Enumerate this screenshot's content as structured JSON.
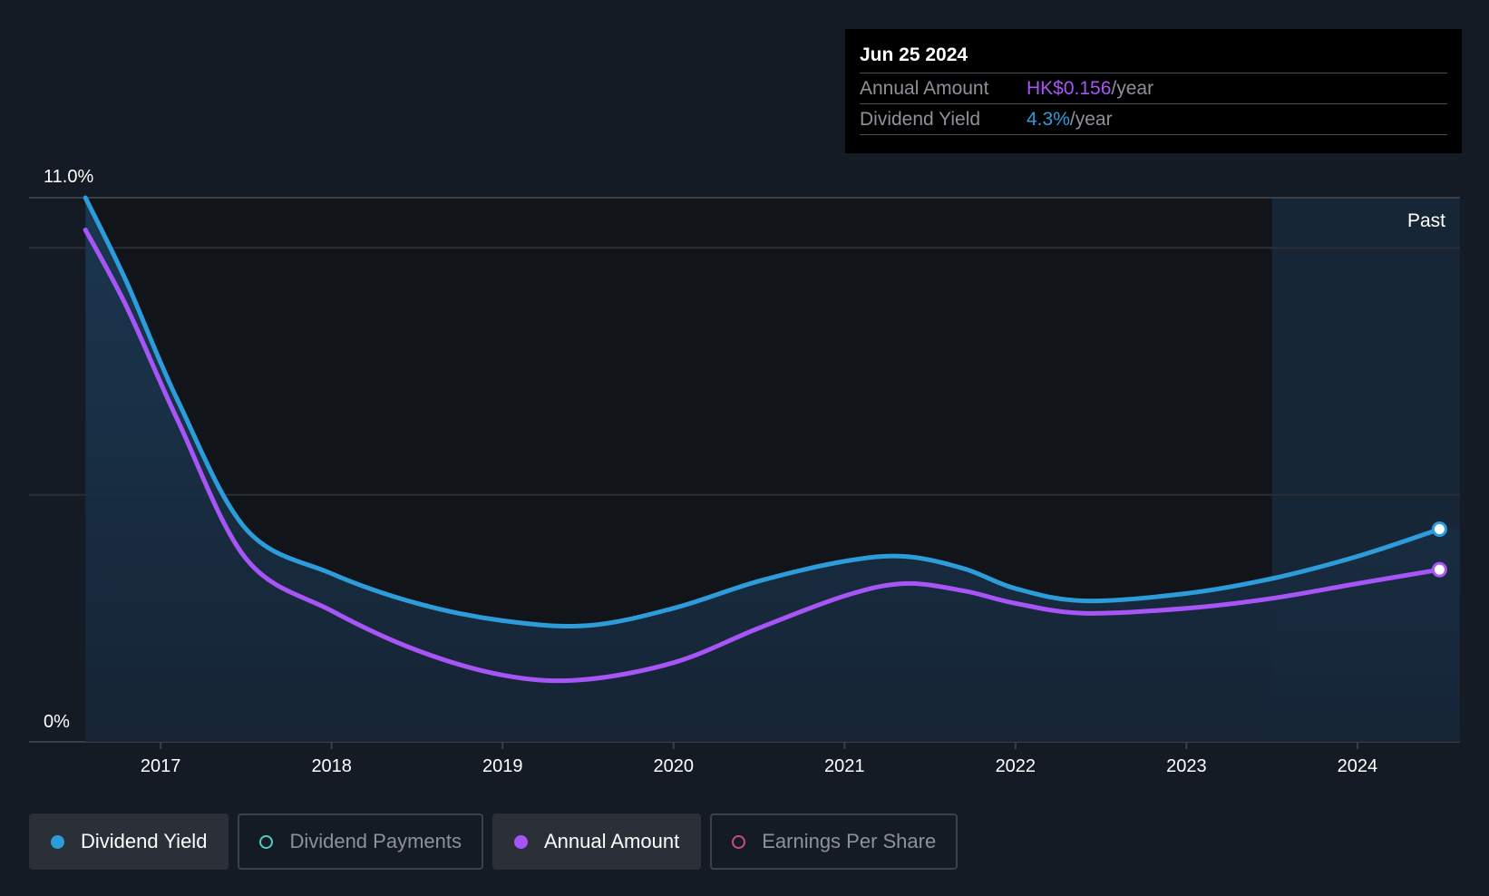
{
  "tooltip": {
    "date": "Jun 25 2024",
    "rows": [
      {
        "label": "Annual Amount",
        "value": "HK$0.156",
        "unit": "/year"
      },
      {
        "label": "Dividend Yield",
        "value": "4.3%",
        "unit": "/year"
      }
    ]
  },
  "legend": [
    {
      "label": "Dividend Yield",
      "active": true,
      "color": "#2d9cdb",
      "marker": "filled"
    },
    {
      "label": "Dividend Payments",
      "active": false,
      "color": "#4ecdc4",
      "marker": "hollow"
    },
    {
      "label": "Annual Amount",
      "active": true,
      "color": "#a855f7",
      "marker": "filled"
    },
    {
      "label": "Earnings Per Share",
      "active": false,
      "color": "#c44d8a",
      "marker": "hollow"
    }
  ],
  "colors": {
    "background": "#151b24",
    "yield": "#2d9cdb",
    "amount": "#a855f7",
    "past_region": "#182a3e"
  },
  "chart_data": {
    "type": "line",
    "y_axis_labels": [
      "11.0%",
      "0%"
    ],
    "ylim": [
      0,
      11
    ],
    "x_ticks": [
      "2017",
      "2018",
      "2019",
      "2020",
      "2021",
      "2022",
      "2023",
      "2024"
    ],
    "x_tick_values": [
      2017,
      2018,
      2019,
      2020,
      2021,
      2022,
      2023,
      2024
    ],
    "xlim": [
      2016.23,
      2024.6
    ],
    "past_label": "Past",
    "past_start": 2023.5,
    "series": [
      {
        "name": "Dividend Yield",
        "color": "#2d9cdb",
        "unit": "%",
        "points": [
          [
            2016.56,
            11.0
          ],
          [
            2016.8,
            9.3
          ],
          [
            2017.1,
            6.9
          ],
          [
            2017.5,
            4.3
          ],
          [
            2018.0,
            3.4
          ],
          [
            2018.5,
            2.8
          ],
          [
            2019.0,
            2.45
          ],
          [
            2019.5,
            2.35
          ],
          [
            2020.0,
            2.7
          ],
          [
            2020.5,
            3.25
          ],
          [
            2021.0,
            3.65
          ],
          [
            2021.35,
            3.75
          ],
          [
            2021.7,
            3.5
          ],
          [
            2022.0,
            3.1
          ],
          [
            2022.4,
            2.85
          ],
          [
            2023.0,
            3.0
          ],
          [
            2023.5,
            3.3
          ],
          [
            2024.0,
            3.75
          ],
          [
            2024.48,
            4.3
          ]
        ]
      },
      {
        "name": "Annual Amount",
        "color": "#a855f7",
        "unit": "%",
        "points": [
          [
            2016.56,
            10.35
          ],
          [
            2016.8,
            8.8
          ],
          [
            2017.1,
            6.5
          ],
          [
            2017.5,
            3.7
          ],
          [
            2018.0,
            2.65
          ],
          [
            2018.5,
            1.85
          ],
          [
            2019.0,
            1.35
          ],
          [
            2019.45,
            1.25
          ],
          [
            2020.0,
            1.6
          ],
          [
            2020.5,
            2.3
          ],
          [
            2021.0,
            2.95
          ],
          [
            2021.35,
            3.2
          ],
          [
            2021.7,
            3.05
          ],
          [
            2022.0,
            2.8
          ],
          [
            2022.4,
            2.6
          ],
          [
            2023.0,
            2.7
          ],
          [
            2023.5,
            2.9
          ],
          [
            2024.0,
            3.2
          ],
          [
            2024.48,
            3.48
          ]
        ]
      }
    ],
    "grid": true
  }
}
